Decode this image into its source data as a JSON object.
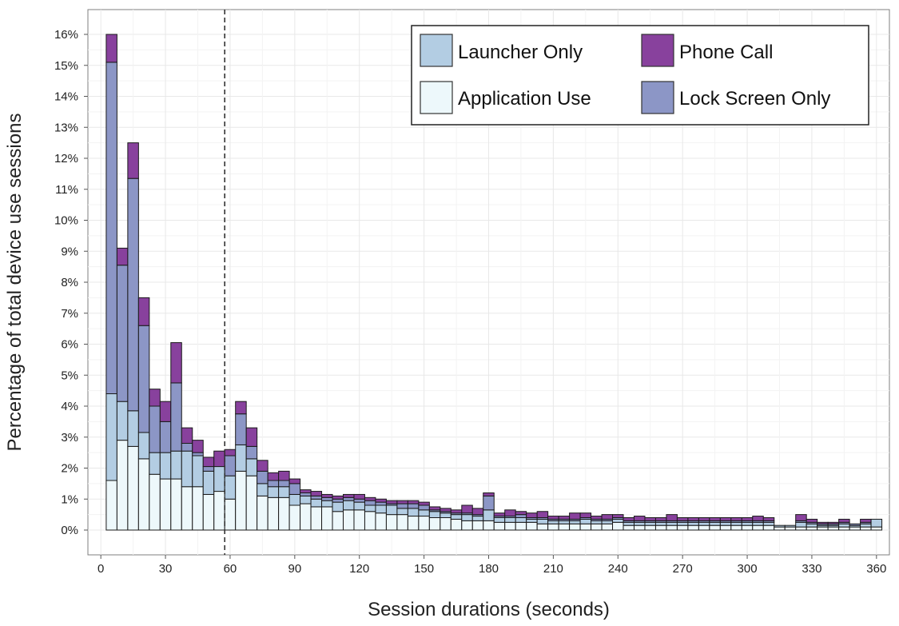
{
  "chart_data": {
    "type": "bar",
    "stacked": true,
    "bin_width_seconds": 5,
    "xlabel": "Session durations (seconds)",
    "ylabel": "Percentage of total device use sessions",
    "xlim": [
      -6,
      366
    ],
    "ylim": [
      -0.8,
      16.8
    ],
    "x_ticks": [
      0,
      30,
      60,
      90,
      120,
      150,
      180,
      210,
      240,
      270,
      300,
      330,
      360
    ],
    "x_tick_labels": [
      "0",
      "30",
      "60",
      "90",
      "120",
      "150",
      "180",
      "210",
      "240",
      "270",
      "300",
      "330",
      "360"
    ],
    "y_ticks": [
      0,
      1,
      2,
      3,
      4,
      5,
      6,
      7,
      8,
      9,
      10,
      11,
      12,
      13,
      14,
      15,
      16
    ],
    "y_tick_labels": [
      "0%",
      "1%",
      "2%",
      "3%",
      "4%",
      "5%",
      "6%",
      "7%",
      "8%",
      "9%",
      "10%",
      "11%",
      "12%",
      "13%",
      "14%",
      "15%",
      "16%"
    ],
    "reference_line_x": 57.5,
    "grid": true,
    "legend_position": "top-right",
    "legend": [
      {
        "name": "Launcher Only",
        "color": "#b3cde3"
      },
      {
        "name": "Phone Call",
        "color": "#88419d"
      },
      {
        "name": "Application Use",
        "color": "#edf8fb"
      },
      {
        "name": "Lock Screen Only",
        "color": "#8c96c6"
      }
    ],
    "x": [
      5,
      10,
      15,
      20,
      25,
      30,
      35,
      40,
      45,
      50,
      55,
      60,
      65,
      70,
      75,
      80,
      85,
      90,
      95,
      100,
      105,
      110,
      115,
      120,
      125,
      130,
      135,
      140,
      145,
      150,
      155,
      160,
      165,
      170,
      175,
      180,
      185,
      190,
      195,
      200,
      205,
      210,
      215,
      220,
      225,
      230,
      235,
      240,
      245,
      250,
      255,
      260,
      265,
      270,
      275,
      280,
      285,
      290,
      295,
      300,
      305,
      310,
      315,
      320,
      325,
      330,
      335,
      340,
      345,
      350,
      355,
      360
    ],
    "series": [
      {
        "name": "Application Use",
        "color": "#edf8fb",
        "values": [
          1.6,
          2.9,
          2.7,
          2.3,
          1.8,
          1.65,
          1.65,
          1.4,
          1.4,
          1.15,
          1.25,
          1.0,
          1.9,
          1.75,
          1.1,
          1.05,
          1.05,
          0.8,
          0.85,
          0.75,
          0.75,
          0.6,
          0.65,
          0.65,
          0.6,
          0.55,
          0.5,
          0.5,
          0.45,
          0.45,
          0.4,
          0.4,
          0.35,
          0.3,
          0.3,
          0.3,
          0.25,
          0.25,
          0.25,
          0.25,
          0.2,
          0.2,
          0.2,
          0.2,
          0.2,
          0.2,
          0.2,
          0.25,
          0.15,
          0.15,
          0.15,
          0.15,
          0.15,
          0.15,
          0.15,
          0.15,
          0.15,
          0.15,
          0.15,
          0.15,
          0.15,
          0.15,
          0.1,
          0.1,
          0.1,
          0.1,
          0.1,
          0.1,
          0.1,
          0.1,
          0.1,
          0.1
        ]
      },
      {
        "name": "Launcher Only",
        "color": "#b3cde3",
        "values": [
          2.8,
          1.25,
          1.15,
          0.85,
          0.7,
          0.85,
          0.9,
          1.15,
          1.0,
          0.75,
          0.8,
          0.75,
          0.85,
          0.55,
          0.4,
          0.35,
          0.35,
          0.35,
          0.25,
          0.25,
          0.2,
          0.3,
          0.3,
          0.25,
          0.2,
          0.25,
          0.3,
          0.2,
          0.25,
          0.2,
          0.2,
          0.15,
          0.15,
          0.2,
          0.15,
          0.35,
          0.15,
          0.15,
          0.15,
          0.1,
          0.15,
          0.1,
          0.1,
          0.1,
          0.15,
          0.1,
          0.1,
          0.1,
          0.1,
          0.1,
          0.1,
          0.1,
          0.1,
          0.1,
          0.1,
          0.1,
          0.1,
          0.1,
          0.1,
          0.1,
          0.1,
          0.1,
          0.05,
          0.05,
          0.15,
          0.1,
          0.05,
          0.05,
          0.1,
          0.05,
          0.1,
          0.25
        ]
      },
      {
        "name": "Lock Screen Only",
        "color": "#8c96c6",
        "values": [
          10.7,
          4.4,
          7.5,
          3.45,
          1.5,
          1.0,
          2.2,
          0.25,
          0.1,
          0.15,
          0.0,
          0.65,
          1.0,
          0.4,
          0.4,
          0.2,
          0.2,
          0.35,
          0.1,
          0.1,
          0.1,
          0.1,
          0.1,
          0.1,
          0.15,
          0.1,
          0.05,
          0.15,
          0.15,
          0.15,
          0.05,
          0.05,
          0.05,
          0.05,
          0.05,
          0.45,
          0.05,
          0.05,
          0.1,
          0.05,
          0.05,
          0.05,
          0.05,
          0.05,
          0.05,
          0.05,
          0.05,
          0.05,
          0.05,
          0.05,
          0.05,
          0.05,
          0.05,
          0.05,
          0.05,
          0.05,
          0.05,
          0.05,
          0.05,
          0.05,
          0.05,
          0.05,
          0.0,
          0.0,
          0.05,
          0.05,
          0.05,
          0.05,
          0.05,
          0.05,
          0.05,
          0.0
        ]
      },
      {
        "name": "Phone Call",
        "color": "#88419d",
        "values": [
          0.9,
          0.55,
          1.15,
          0.9,
          0.55,
          0.65,
          1.3,
          0.5,
          0.4,
          0.3,
          0.5,
          0.2,
          0.4,
          0.6,
          0.35,
          0.25,
          0.3,
          0.15,
          0.1,
          0.15,
          0.1,
          0.1,
          0.1,
          0.15,
          0.1,
          0.1,
          0.1,
          0.1,
          0.1,
          0.1,
          0.1,
          0.1,
          0.1,
          0.25,
          0.2,
          0.1,
          0.1,
          0.2,
          0.1,
          0.15,
          0.2,
          0.1,
          0.1,
          0.2,
          0.15,
          0.1,
          0.15,
          0.1,
          0.1,
          0.15,
          0.1,
          0.1,
          0.2,
          0.1,
          0.1,
          0.1,
          0.1,
          0.1,
          0.1,
          0.1,
          0.15,
          0.1,
          0.0,
          0.0,
          0.2,
          0.1,
          0.05,
          0.05,
          0.1,
          0.0,
          0.1,
          0.0
        ]
      }
    ]
  }
}
